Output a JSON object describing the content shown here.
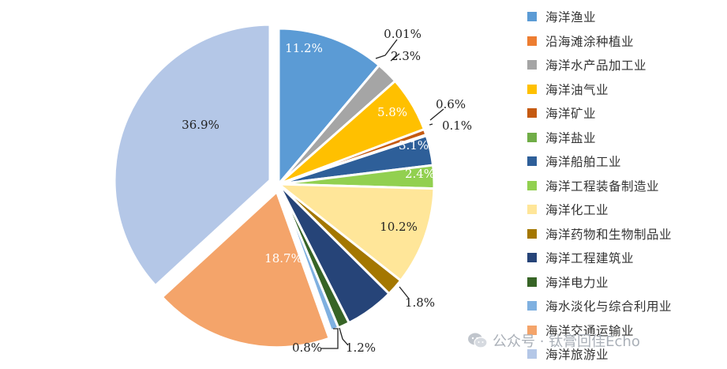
{
  "chart_data": {
    "type": "pie",
    "title": "",
    "legend_position": "right",
    "slices": [
      {
        "name": "海洋渔业",
        "value": 11.2,
        "label": "11.2%",
        "color": "#5b9bd5"
      },
      {
        "name": "沿海滩涂种植业",
        "value": 0.01,
        "label": "0.01%",
        "color": "#ed7d31"
      },
      {
        "name": "海洋水产品加工业",
        "value": 2.3,
        "label": "2.3%",
        "color": "#a5a5a5"
      },
      {
        "name": "海洋油气业",
        "value": 5.8,
        "label": "5.8%",
        "color": "#ffc000"
      },
      {
        "name": "海洋矿业",
        "value": 0.6,
        "label": "0.6%",
        "color": "#c55a11"
      },
      {
        "name": "海洋盐业",
        "value": 0.1,
        "label": "0.1%",
        "color": "#70ad47"
      },
      {
        "name": "海洋船舶工业",
        "value": 3.1,
        "label": "3.1%",
        "color": "#2e5f99"
      },
      {
        "name": "海洋工程装备制造业",
        "value": 2.4,
        "label": "2.4%",
        "color": "#92d050"
      },
      {
        "name": "海洋化工业",
        "value": 10.2,
        "label": "10.2%",
        "color": "#ffe699"
      },
      {
        "name": "海洋药物和生物制品业",
        "value": 1.8,
        "label": "1.8%",
        "color": "#a47700"
      },
      {
        "name": "海洋工程建筑业",
        "value": 5.1,
        "label": "",
        "color": "#264478"
      },
      {
        "name": "海洋电力业",
        "value": 1.2,
        "label": "1.2%",
        "color": "#376426"
      },
      {
        "name": "海水淡化与综合利用业",
        "value": 0.8,
        "label": "0.8%",
        "color": "#7fb0e0"
      },
      {
        "name": "海洋交通运输业",
        "value": 18.7,
        "label": "18.7%",
        "color": "#f4a46a"
      },
      {
        "name": "海洋旅游业",
        "value": 36.9,
        "label": "36.9%",
        "color": "#b4c7e7"
      }
    ]
  },
  "watermark": {
    "text": "公众号 · 钛膏回佳Echo",
    "icon": "wechat-icon"
  }
}
